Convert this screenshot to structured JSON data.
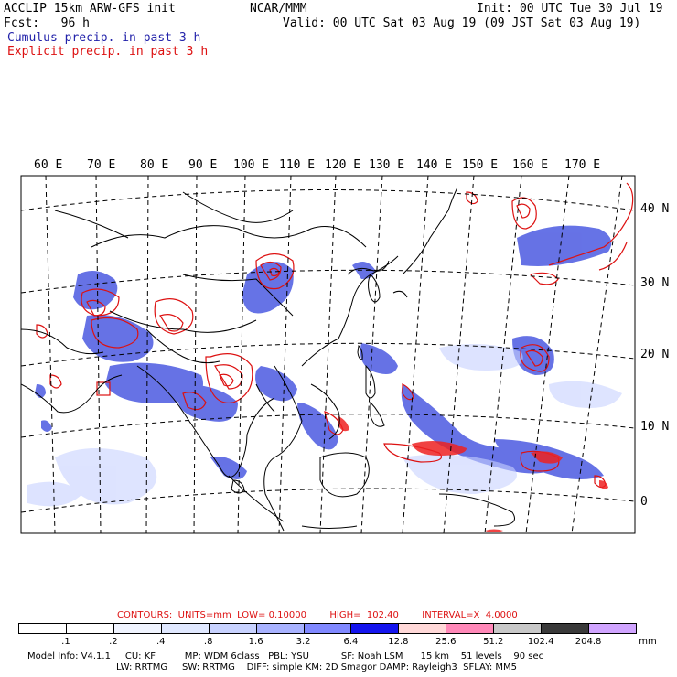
{
  "header": {
    "model": "ACCLIP 15km ARW-GFS init",
    "org": "NCAR/MMM",
    "init": "Init: 00 UTC Tue 30 Jul 19",
    "fcst": "Fcst:   96 h",
    "valid": "Valid: 00 UTC Sat 03 Aug 19 (09 JST Sat 03 Aug 19)",
    "cumulus_label": "Cumulus precip. in past 3 h",
    "explicit_label": "Explicit precip. in past 3 h"
  },
  "colors": {
    "cumulus": "#2222aa",
    "explicit": "#dd1111",
    "land_outline": "#000000"
  },
  "map": {
    "lon_labels": [
      "60 E",
      "70 E",
      "80 E",
      "90 E",
      "100 E",
      "110 E",
      "120 E",
      "130 E",
      "140 E",
      "150 E",
      "160 E",
      "170 E"
    ],
    "lat_labels": [
      "40 N",
      "30 N",
      "20 N",
      "10 N",
      "0"
    ]
  },
  "legend": {
    "contours_line": "CONTOURS:  UNITS=mm  LOW= 0.10000        HIGH=  102.40        INTERVAL=X  4.0000",
    "ticks": [
      ".1",
      ".2",
      ".4",
      ".8",
      "1.6",
      "3.2",
      "6.4",
      "12.8",
      "25.6",
      "51.2",
      "102.4",
      "204.8"
    ],
    "units": "mm",
    "bins": [
      {
        "color": "#ffffff"
      },
      {
        "color": "#ffffff"
      },
      {
        "color": "#f0f4ff"
      },
      {
        "color": "#e0e8ff"
      },
      {
        "color": "#c8d2ff"
      },
      {
        "color": "#a8b2ff"
      },
      {
        "color": "#8088ff"
      },
      {
        "color": "#1414ee"
      },
      {
        "color": "#ffd8d8"
      },
      {
        "color": "#ff88b8"
      },
      {
        "color": "#c8c8c8"
      },
      {
        "color": "#3a3a3a"
      },
      {
        "color": "#d0a4ff"
      }
    ]
  },
  "footer": {
    "line1": "Model Info: V4.1.1     CU: KF          MP: WDM 6class   PBL: YSU           SF: Noah LSM      15 km    51 levels    90 sec",
    "line2": "LW: RRTMG     SW: RRTMG    DIFF: simple KM: 2D Smagor DAMP: Rayleigh3  SFLAY: MM5"
  }
}
